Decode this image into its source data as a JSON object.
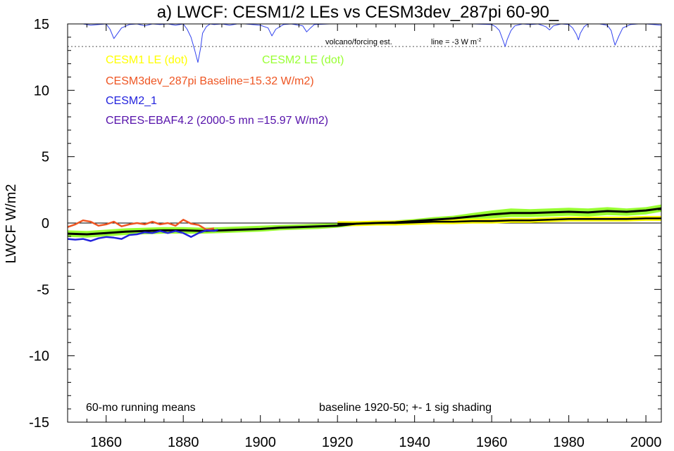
{
  "chart_data": {
    "type": "line",
    "title": "a) LWCF: CESM1/2 LEs vs CESM3dev_287pi 60-90_",
    "ylabel": "LWCF W/m2",
    "xlabel": "",
    "xlim": [
      1850,
      2004
    ],
    "ylim": [
      -15,
      15
    ],
    "x_ticks": [
      1860,
      1880,
      1900,
      1920,
      1940,
      1960,
      1980,
      2000
    ],
    "y_ticks": [
      15,
      10,
      5,
      0,
      -5,
      -10,
      -15
    ],
    "grid": false,
    "legend_position": "top-left",
    "colors": {
      "cesm1": "#ffff00",
      "cesm2": "#99ff33",
      "cesm3dev": "#ee5522",
      "cesm2_1": "#2222dd",
      "ceres": "#5511aa",
      "black": "#000000",
      "volcano": "#3344ee"
    },
    "legend": {
      "cesm1": "CESM1 LE (dot)",
      "cesm2": "CESM2 LE (dot)",
      "cesm3dev": "CESM3dev_287pi Baseline=15.32 W/m2)",
      "cesm2_1": "CESM2_1",
      "ceres": "CERES-EBAF4.2 (2000-5 mn =15.97 W/m2)"
    },
    "annotations": {
      "volcano_label": "volcano/forcing est.",
      "line_label": "line = -3 W m",
      "line_label_sup": "-2",
      "running_means": "60-mo running means",
      "baseline_note": "baseline 1920-50; +- 1 sig shading"
    },
    "reference_line_y": 13.3,
    "zero_line_y": 0,
    "series": [
      {
        "name": "CESM2 LE (dot)",
        "role": "shading",
        "x": [
          1850,
          1855,
          1860,
          1865,
          1870,
          1875,
          1880,
          1885,
          1890,
          1895,
          1900,
          1905,
          1910,
          1915,
          1920,
          1925,
          1930,
          1935,
          1940,
          1945,
          1950,
          1955,
          1960,
          1965,
          1970,
          1975,
          1980,
          1985,
          1990,
          1995,
          2000,
          2004
        ],
        "upper": [
          -0.55,
          -0.6,
          -0.5,
          -0.4,
          -0.35,
          -0.3,
          -0.3,
          -0.35,
          -0.3,
          -0.25,
          -0.2,
          -0.15,
          -0.1,
          -0.05,
          0.0,
          0.1,
          0.15,
          0.2,
          0.3,
          0.45,
          0.55,
          0.75,
          0.95,
          1.1,
          1.05,
          1.1,
          1.15,
          1.1,
          1.2,
          1.1,
          1.2,
          1.4
        ],
        "lower": [
          -1.05,
          -1.1,
          -1.0,
          -0.9,
          -0.85,
          -0.8,
          -0.8,
          -0.8,
          -0.75,
          -0.7,
          -0.65,
          -0.55,
          -0.5,
          -0.45,
          -0.35,
          -0.2,
          -0.15,
          -0.1,
          0.0,
          0.1,
          0.2,
          0.3,
          0.35,
          0.45,
          0.45,
          0.5,
          0.55,
          0.5,
          0.6,
          0.55,
          0.65,
          0.85
        ]
      },
      {
        "name": "CESM1 LE (dot)",
        "x": [
          1920,
          1925,
          1930,
          1935,
          1940,
          1945,
          1950,
          1955,
          1960,
          1965,
          1970,
          1975,
          1980,
          1985,
          1990,
          1995,
          2000,
          2004
        ],
        "values": [
          -0.05,
          -0.05,
          0.0,
          0.0,
          0.05,
          0.1,
          0.1,
          0.15,
          0.15,
          0.2,
          0.2,
          0.25,
          0.3,
          0.3,
          0.3,
          0.3,
          0.35,
          0.35
        ]
      },
      {
        "name": "CESM2 LE mean",
        "role": "black",
        "x": [
          1850,
          1855,
          1860,
          1865,
          1870,
          1875,
          1880,
          1885,
          1890,
          1895,
          1900,
          1905,
          1910,
          1915,
          1920,
          1925,
          1930,
          1935,
          1940,
          1945,
          1950,
          1955,
          1960,
          1965,
          1970,
          1975,
          1980,
          1985,
          1990,
          1995,
          2000,
          2004
        ],
        "values": [
          -0.8,
          -0.85,
          -0.75,
          -0.65,
          -0.6,
          -0.55,
          -0.55,
          -0.6,
          -0.55,
          -0.5,
          -0.45,
          -0.35,
          -0.3,
          -0.25,
          -0.2,
          -0.05,
          0.0,
          0.05,
          0.15,
          0.25,
          0.35,
          0.5,
          0.65,
          0.75,
          0.75,
          0.8,
          0.85,
          0.8,
          0.9,
          0.85,
          0.95,
          1.1
        ]
      },
      {
        "name": "CESM1 LE mean",
        "role": "black2",
        "x": [
          1920,
          1925,
          1930,
          1935,
          1940,
          1945,
          1950,
          1955,
          1960,
          1965,
          1970,
          1975,
          1980,
          1985,
          1990,
          1995,
          2000,
          2004
        ],
        "values": [
          -0.05,
          -0.05,
          0.0,
          0.0,
          0.05,
          0.1,
          0.1,
          0.15,
          0.15,
          0.2,
          0.2,
          0.25,
          0.3,
          0.3,
          0.3,
          0.3,
          0.35,
          0.35
        ]
      },
      {
        "name": "CESM3dev_287pi",
        "x": [
          1850,
          1852,
          1854,
          1856,
          1858,
          1860,
          1862,
          1864,
          1866,
          1868,
          1870,
          1872,
          1874,
          1876,
          1878,
          1880,
          1882,
          1884,
          1886,
          1888
        ],
        "values": [
          -0.3,
          -0.1,
          0.2,
          0.1,
          -0.2,
          -0.1,
          0.1,
          -0.25,
          -0.1,
          0.0,
          -0.1,
          0.1,
          -0.1,
          0.0,
          -0.2,
          0.25,
          -0.05,
          -0.15,
          -0.5,
          -0.4
        ]
      },
      {
        "name": "CESM2_1",
        "x": [
          1850,
          1852,
          1854,
          1856,
          1858,
          1860,
          1862,
          1864,
          1866,
          1868,
          1870,
          1872,
          1874,
          1876,
          1878,
          1880,
          1882,
          1884,
          1886,
          1888,
          1889
        ],
        "values": [
          -1.2,
          -1.25,
          -1.2,
          -1.35,
          -1.15,
          -1.05,
          -1.1,
          -1.2,
          -0.9,
          -0.85,
          -0.7,
          -0.75,
          -0.6,
          -0.75,
          -0.6,
          -0.75,
          -1.05,
          -0.75,
          -0.55,
          -0.6,
          -0.5
        ]
      },
      {
        "name": "volcano/forcing est.",
        "role": "volcano",
        "x": [
          1850,
          1854,
          1856,
          1858,
          1860,
          1861,
          1862,
          1864,
          1866,
          1868,
          1870,
          1872,
          1874,
          1876,
          1878,
          1880,
          1881,
          1882,
          1883,
          1883.8,
          1884.5,
          1885,
          1886,
          1887,
          1888,
          1890,
          1892,
          1894,
          1896,
          1900,
          1902,
          1903,
          1904,
          1906,
          1908,
          1910,
          1911,
          1912,
          1913,
          1914,
          1918,
          1920,
          1925,
          1930,
          1935,
          1940,
          1945,
          1950,
          1955,
          1960,
          1961,
          1962,
          1963,
          1963.5,
          1964,
          1965,
          1966,
          1968,
          1970,
          1972,
          1974,
          1975,
          1976,
          1978,
          1980,
          1981,
          1982,
          1982.5,
          1983,
          1984,
          1985,
          1986,
          1988,
          1990,
          1991,
          1991.5,
          1992,
          1993,
          1994,
          1996,
          1998,
          2000,
          2002,
          2004
        ],
        "values": [
          15.0,
          15.0,
          14.9,
          14.95,
          15.0,
          14.6,
          13.9,
          14.7,
          14.95,
          15.0,
          14.85,
          15.0,
          14.95,
          15.0,
          14.9,
          15.0,
          14.6,
          14.0,
          13.0,
          12.1,
          13.2,
          14.3,
          14.8,
          15.0,
          14.95,
          15.0,
          14.9,
          15.0,
          15.0,
          14.9,
          14.7,
          14.1,
          14.6,
          14.95,
          15.0,
          14.9,
          14.85,
          14.4,
          14.7,
          14.95,
          15.0,
          15.0,
          15.0,
          15.0,
          15.0,
          15.0,
          15.0,
          15.0,
          15.0,
          14.95,
          14.8,
          14.5,
          13.7,
          13.3,
          13.8,
          14.5,
          14.85,
          15.0,
          14.95,
          15.0,
          14.8,
          14.55,
          14.85,
          15.0,
          14.95,
          14.7,
          14.2,
          13.8,
          14.3,
          14.8,
          15.0,
          15.0,
          15.0,
          14.9,
          14.5,
          13.9,
          13.4,
          14.1,
          14.7,
          14.95,
          15.0,
          15.0,
          14.95,
          14.9
        ]
      }
    ]
  }
}
